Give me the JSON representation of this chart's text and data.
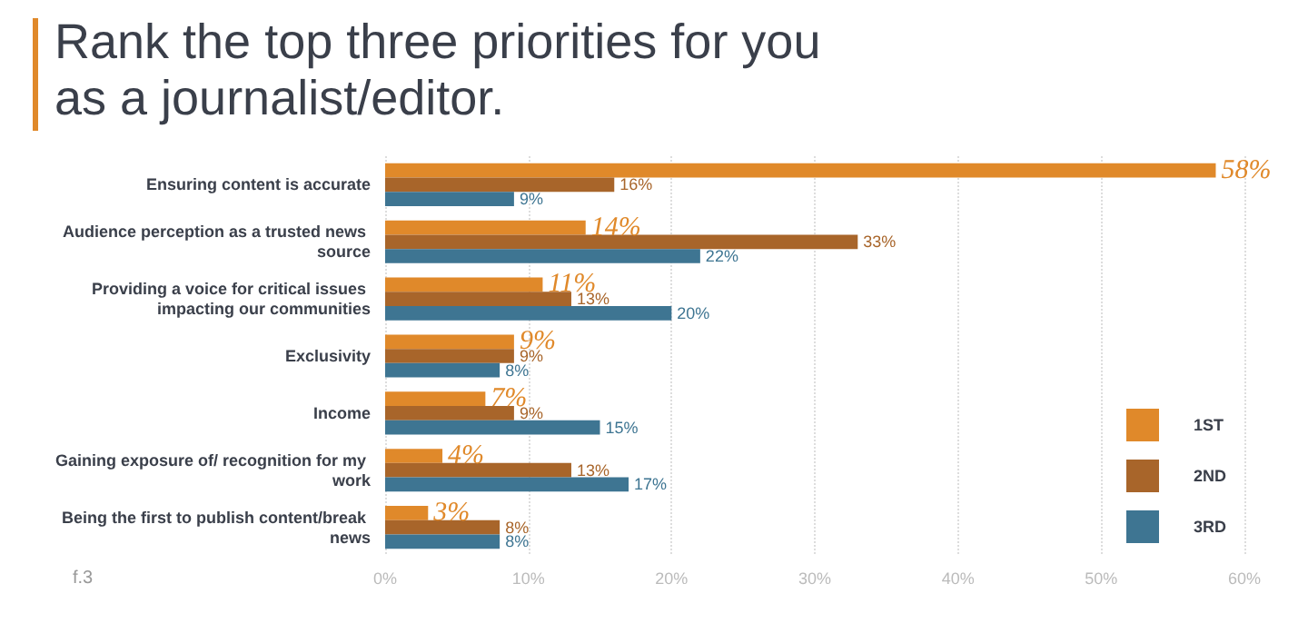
{
  "chart_data": {
    "type": "bar",
    "orientation": "horizontal",
    "title": "Rank the top three priorities for you as a journalist/editor.",
    "categories": [
      "Ensuring content is accurate",
      "Audience perception as a trusted news source",
      "Providing a voice for critical issues impacting our communities",
      "Exclusivity",
      "Income",
      "Gaining exposure of/ recognition for my work",
      "Being the first to publish content/break news"
    ],
    "series": [
      {
        "name": "1ST",
        "color": "#e0892a",
        "values": [
          58,
          14,
          11,
          9,
          7,
          4,
          3
        ],
        "value_labels": [
          "58%",
          "14%",
          "11%",
          "9%",
          "7%",
          "4%",
          "3%"
        ]
      },
      {
        "name": "2ND",
        "color": "#a8652a",
        "values": [
          16,
          33,
          13,
          9,
          9,
          13,
          8
        ],
        "value_labels": [
          "16%",
          "33%",
          "13%",
          "9%",
          "9%",
          "13%",
          "8%"
        ]
      },
      {
        "name": "3RD",
        "color": "#3e7592",
        "values": [
          9,
          22,
          20,
          8,
          15,
          17,
          8
        ],
        "value_labels": [
          "9%",
          "22%",
          "20%",
          "8%",
          "15%",
          "17%",
          "8%"
        ]
      }
    ],
    "xlim": [
      0,
      60
    ],
    "xticks": [
      {
        "value": 0,
        "label": "0%"
      },
      {
        "value": 10,
        "label": "10%"
      },
      {
        "value": 20,
        "label": "20%"
      },
      {
        "value": 30,
        "label": "30%"
      },
      {
        "value": 40,
        "label": "40%"
      },
      {
        "value": 50,
        "label": "50%"
      },
      {
        "value": 60,
        "label": "60%"
      }
    ],
    "grid": "x",
    "legend": "bottom right",
    "annotations": [
      "f.3"
    ]
  }
}
